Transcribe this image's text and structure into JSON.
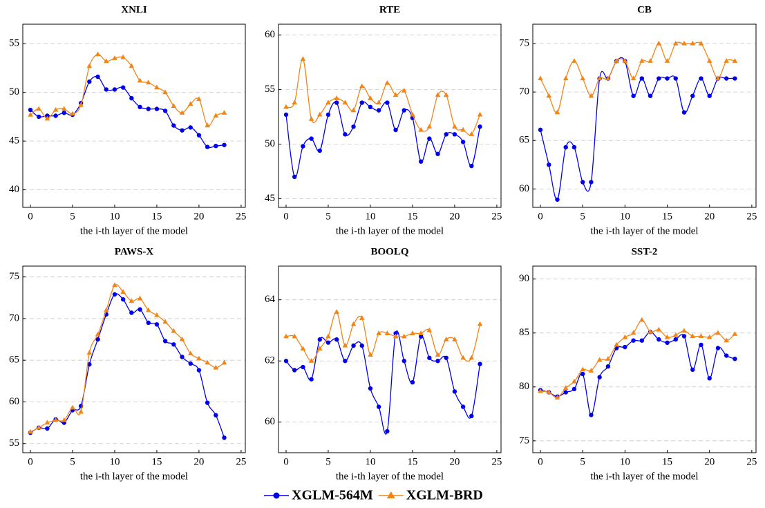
{
  "legend": [
    {
      "name": "XGLM-564M",
      "color": "#0000ee",
      "marker": "circle"
    },
    {
      "name": "XGLM-BRD",
      "color": "#f28518",
      "marker": "triangle"
    }
  ],
  "chart_data": [
    {
      "type": "line",
      "title": "XNLI",
      "x_label": "the i-th layer of the model",
      "x": [
        0,
        1,
        2,
        3,
        4,
        5,
        6,
        7,
        8,
        9,
        10,
        11,
        12,
        13,
        14,
        15,
        16,
        17,
        18,
        19,
        20,
        21,
        22,
        23
      ],
      "xlim": [
        -0.9,
        25.5
      ],
      "xticks": [
        0,
        5,
        10,
        15,
        20,
        25
      ],
      "ylim": [
        38.2,
        57
      ],
      "yticks": [
        40,
        45,
        50,
        55
      ],
      "grid": "y",
      "series": [
        {
          "color": "#0000ee",
          "marker": "circle",
          "values": [
            48.2,
            47.5,
            47.6,
            47.6,
            47.9,
            47.7,
            48.9,
            51.1,
            51.6,
            50.3,
            50.3,
            50.5,
            49.4,
            48.5,
            48.3,
            48.3,
            48.1,
            46.6,
            46.1,
            46.4,
            45.6,
            44.4,
            44.5,
            44.6
          ]
        },
        {
          "color": "#f28518",
          "marker": "triangle",
          "values": [
            47.7,
            48.3,
            47.3,
            48.2,
            48.3,
            47.8,
            48.7,
            52.7,
            53.9,
            53.2,
            53.5,
            53.6,
            52.7,
            51.2,
            51.0,
            50.5,
            50.0,
            48.6,
            47.9,
            48.8,
            49.3,
            46.6,
            47.6,
            47.9
          ]
        }
      ]
    },
    {
      "type": "line",
      "title": "RTE",
      "x_label": "the i-th layer of the model",
      "x": [
        0,
        1,
        2,
        3,
        4,
        5,
        6,
        7,
        8,
        9,
        10,
        11,
        12,
        13,
        14,
        15,
        16,
        17,
        18,
        19,
        20,
        21,
        22,
        23
      ],
      "xlim": [
        -0.9,
        25.5
      ],
      "xticks": [
        0,
        5,
        10,
        15,
        20,
        25
      ],
      "ylim": [
        44.2,
        61
      ],
      "yticks": [
        45,
        50,
        55,
        60
      ],
      "grid": "y",
      "series": [
        {
          "color": "#0000ee",
          "marker": "circle",
          "values": [
            52.7,
            47.0,
            49.8,
            50.5,
            49.4,
            52.7,
            53.8,
            50.9,
            51.6,
            53.8,
            53.4,
            53.1,
            53.8,
            51.3,
            53.1,
            52.4,
            48.4,
            50.5,
            49.1,
            50.9,
            50.9,
            50.2,
            48.0,
            51.6
          ]
        },
        {
          "color": "#f28518",
          "marker": "triangle",
          "values": [
            53.4,
            53.8,
            57.8,
            52.3,
            52.7,
            53.8,
            54.2,
            53.8,
            53.1,
            55.3,
            54.2,
            53.8,
            55.6,
            54.5,
            54.9,
            52.7,
            51.3,
            51.6,
            54.5,
            54.5,
            51.6,
            51.3,
            50.9,
            52.7
          ]
        }
      ]
    },
    {
      "type": "line",
      "title": "CB",
      "x_label": "the i-th layer of the model",
      "x": [
        0,
        1,
        2,
        3,
        4,
        5,
        6,
        7,
        8,
        9,
        10,
        11,
        12,
        13,
        14,
        15,
        16,
        17,
        18,
        19,
        20,
        21,
        22,
        23
      ],
      "xlim": [
        -0.9,
        25.5
      ],
      "xticks": [
        0,
        5,
        10,
        15,
        20,
        25
      ],
      "ylim": [
        58.1,
        77
      ],
      "yticks": [
        60,
        65,
        70,
        75
      ],
      "grid": "y",
      "series": [
        {
          "color": "#0000ee",
          "marker": "circle",
          "values": [
            66.1,
            62.5,
            58.9,
            64.3,
            64.3,
            60.7,
            60.7,
            71.4,
            71.4,
            73.2,
            73.2,
            69.6,
            71.4,
            69.6,
            71.4,
            71.4,
            71.4,
            67.9,
            69.6,
            71.4,
            69.6,
            71.4,
            71.4,
            71.4
          ]
        },
        {
          "color": "#f28518",
          "marker": "triangle",
          "values": [
            71.4,
            69.6,
            67.9,
            71.4,
            73.2,
            71.4,
            69.6,
            71.4,
            71.4,
            73.2,
            73.2,
            71.4,
            73.2,
            73.2,
            75.0,
            73.2,
            75.0,
            75.0,
            75.0,
            75.0,
            73.2,
            71.4,
            73.2,
            73.2
          ]
        }
      ]
    },
    {
      "type": "line",
      "title": "PAWS-X",
      "x_label": "the i-th layer of the model",
      "x": [
        0,
        1,
        2,
        3,
        4,
        5,
        6,
        7,
        8,
        9,
        10,
        11,
        12,
        13,
        14,
        15,
        16,
        17,
        18,
        19,
        20,
        21,
        22,
        23
      ],
      "xlim": [
        -0.9,
        25.5
      ],
      "xticks": [
        0,
        5,
        10,
        15,
        20,
        25
      ],
      "ylim": [
        53.9,
        76.3
      ],
      "yticks": [
        55,
        60,
        65,
        70,
        75
      ],
      "grid": "y",
      "series": [
        {
          "color": "#0000ee",
          "marker": "circle",
          "values": [
            56.3,
            56.9,
            56.8,
            57.9,
            57.5,
            59.0,
            59.5,
            64.5,
            67.5,
            70.5,
            72.9,
            72.3,
            70.7,
            71.1,
            69.5,
            69.3,
            67.3,
            66.9,
            65.4,
            64.6,
            63.8,
            59.9,
            58.4,
            55.7
          ]
        },
        {
          "color": "#f28518",
          "marker": "triangle",
          "values": [
            56.4,
            56.9,
            57.5,
            57.8,
            57.8,
            59.3,
            58.8,
            65.9,
            68.1,
            71.0,
            74.0,
            73.2,
            72.1,
            72.4,
            71.0,
            70.4,
            69.6,
            68.5,
            67.5,
            65.8,
            65.2,
            64.7,
            64.1,
            64.7
          ]
        }
      ]
    },
    {
      "type": "line",
      "title": "BOOLQ",
      "x_label": "the i-th layer of the model",
      "x": [
        0,
        1,
        2,
        3,
        4,
        5,
        6,
        7,
        8,
        9,
        10,
        11,
        12,
        13,
        14,
        15,
        16,
        17,
        18,
        19,
        20,
        21,
        22,
        23
      ],
      "xlim": [
        -0.9,
        25.5
      ],
      "xticks": [
        0,
        5,
        10,
        15,
        20,
        25
      ],
      "ylim": [
        59.0,
        65.1
      ],
      "yticks": [
        60,
        62,
        64
      ],
      "grid": "y",
      "series": [
        {
          "color": "#0000ee",
          "marker": "circle",
          "values": [
            62.0,
            61.7,
            61.8,
            61.4,
            62.7,
            62.6,
            62.7,
            62.0,
            62.5,
            62.5,
            61.1,
            60.5,
            59.7,
            62.9,
            62.0,
            61.3,
            62.8,
            62.1,
            62.0,
            62.1,
            61.0,
            60.5,
            60.2,
            61.9
          ]
        },
        {
          "color": "#f28518",
          "marker": "triangle",
          "values": [
            62.8,
            62.8,
            62.4,
            62.0,
            62.4,
            62.8,
            63.6,
            62.5,
            63.2,
            63.4,
            62.2,
            62.9,
            62.9,
            62.8,
            62.8,
            62.9,
            62.9,
            63.0,
            62.2,
            62.7,
            62.7,
            62.1,
            62.1,
            63.2
          ]
        }
      ]
    },
    {
      "type": "line",
      "title": "SST-2",
      "x_label": "the i-th layer of the model",
      "x": [
        0,
        1,
        2,
        3,
        4,
        5,
        6,
        7,
        8,
        9,
        10,
        11,
        12,
        13,
        14,
        15,
        16,
        17,
        18,
        19,
        20,
        21,
        22,
        23
      ],
      "xlim": [
        -0.9,
        25.5
      ],
      "xticks": [
        0,
        5,
        10,
        15,
        20,
        25
      ],
      "ylim": [
        73.9,
        91.2
      ],
      "yticks": [
        75,
        80,
        85,
        90
      ],
      "grid": "y",
      "series": [
        {
          "color": "#0000ee",
          "marker": "circle",
          "values": [
            79.7,
            79.5,
            79.1,
            79.5,
            79.8,
            81.2,
            77.4,
            80.9,
            81.9,
            83.6,
            83.7,
            84.3,
            84.3,
            85.1,
            84.4,
            84.1,
            84.4,
            84.7,
            81.6,
            83.9,
            80.8,
            83.6,
            82.9,
            82.6
          ]
        },
        {
          "color": "#f28518",
          "marker": "triangle",
          "values": [
            79.6,
            79.5,
            79.0,
            79.9,
            80.5,
            81.6,
            81.5,
            82.5,
            82.6,
            83.9,
            84.6,
            85.0,
            86.2,
            85.1,
            85.3,
            84.6,
            84.8,
            85.2,
            84.7,
            84.7,
            84.6,
            85.0,
            84.3,
            84.9
          ]
        }
      ]
    }
  ]
}
